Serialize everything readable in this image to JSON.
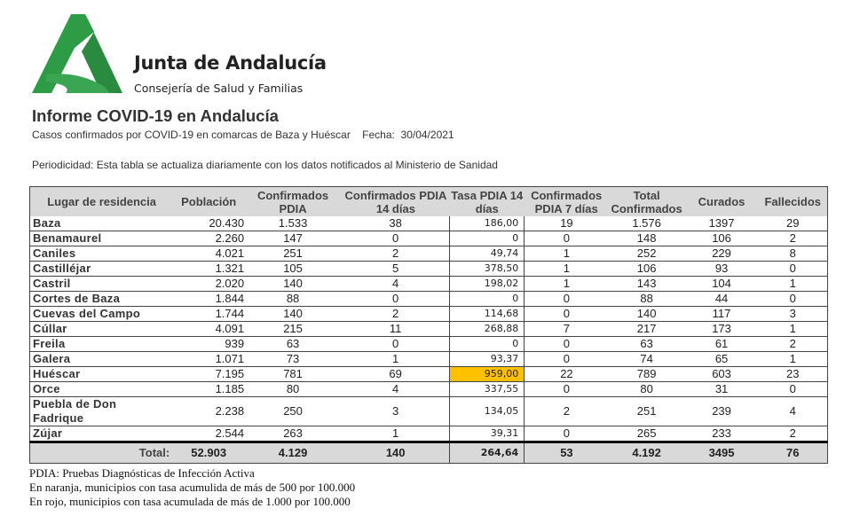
{
  "header": {
    "org": "Junta de Andalucía",
    "dept": "Consejería de Salud y Familias"
  },
  "report": {
    "title": "Informe COVID-19 en Andalucía",
    "subtitle": "Casos confirmados por COVID-19 en comarcas de Baza y Huéscar",
    "date_label": "Fecha:",
    "date": "30/04/2021",
    "periodicity": "Periodicidad: Esta tabla se actualiza diariamente con los datos notificados al Ministerio de Sanidad"
  },
  "colors": {
    "brand_green": "#2e9b47",
    "highlight_orange": "#ffc000",
    "header_gray": "#d9d9d9"
  },
  "table": {
    "columns": [
      "Lugar de residencia",
      "Población",
      "Confirmados PDIA",
      "Confirmados PDIA 14 días",
      "Tasa PDIA 14 días",
      "Confirmados PDIA 7 días",
      "Total Confirmados",
      "Curados",
      "Fallecidos"
    ],
    "rows": [
      [
        "Baza",
        "20.430",
        "1.533",
        "38",
        "186,00",
        "19",
        "1.576",
        "1397",
        "29"
      ],
      [
        "Benamaurel",
        "2.260",
        "147",
        "0",
        "0",
        "0",
        "148",
        "106",
        "2"
      ],
      [
        "Caniles",
        "4.021",
        "251",
        "2",
        "49,74",
        "1",
        "252",
        "229",
        "8"
      ],
      [
        "Castilléjar",
        "1.321",
        "105",
        "5",
        "378,50",
        "1",
        "106",
        "93",
        "0"
      ],
      [
        "Castril",
        "2.020",
        "140",
        "4",
        "198,02",
        "1",
        "143",
        "104",
        "1"
      ],
      [
        "Cortes de Baza",
        "1.844",
        "88",
        "0",
        "0",
        "0",
        "88",
        "44",
        "0"
      ],
      [
        "Cuevas del Campo",
        "1.744",
        "140",
        "2",
        "114,68",
        "0",
        "140",
        "117",
        "3"
      ],
      [
        "Cúllar",
        "4.091",
        "215",
        "11",
        "268,88",
        "7",
        "217",
        "173",
        "1"
      ],
      [
        "Freila",
        "939",
        "63",
        "0",
        "0",
        "0",
        "63",
        "61",
        "2"
      ],
      [
        "Galera",
        "1.071",
        "73",
        "1",
        "93,37",
        "0",
        "74",
        "65",
        "1"
      ],
      [
        "Huéscar",
        "7.195",
        "781",
        "69",
        "959,00",
        "22",
        "789",
        "603",
        "23"
      ],
      [
        "Orce",
        "1.185",
        "80",
        "4",
        "337,55",
        "0",
        "80",
        "31",
        "0"
      ],
      [
        "Puebla de Don Fadrique",
        "2.238",
        "250",
        "3",
        "134,05",
        "2",
        "251",
        "239",
        "4"
      ],
      [
        "Zújar",
        "2.544",
        "263",
        "1",
        "39,31",
        "0",
        "265",
        "233",
        "2"
      ]
    ],
    "highlighted": [
      "Huéscar"
    ],
    "total": [
      "Total:",
      "52.903",
      "4.129",
      "140",
      "264,64",
      "53",
      "4.192",
      "3495",
      "76"
    ]
  },
  "notes": [
    "PDIA: Pruebas Diagnósticas de Infección Activa",
    "En naranja, municipios con tasa acumulida de más de 500 por 100.000",
    "En rojo, municipios con tasa acumulada de más de 1.000 por 100.000"
  ]
}
